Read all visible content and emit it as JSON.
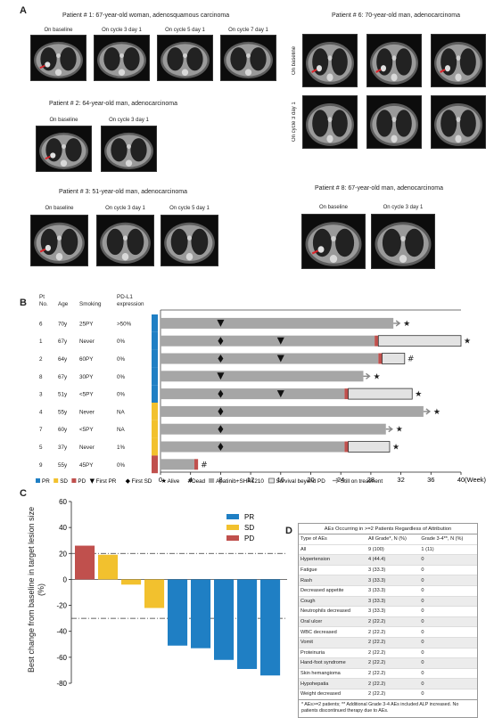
{
  "panels": {
    "a": "A",
    "b": "B",
    "c": "C",
    "d": "D"
  },
  "panel_a": {
    "patients": [
      {
        "title": "Patient # 1: 67-year-old woman, adenosquamous carcinoma",
        "labels": [
          "On baseline",
          "On cycle 3 day 1",
          "On cycle 5 day 1",
          "On cycle 7 day 1"
        ]
      },
      {
        "title": "Patient # 2: 64-year-old man, adenocarcinoma",
        "labels": [
          "On baseline",
          "On cycle 3 day 1"
        ]
      },
      {
        "title": "Patient # 3: 51-year-old man, adenocarcinoma",
        "labels": [
          "On baseline",
          "On cycle 3 day 1",
          "On cycle 5 day 1"
        ]
      },
      {
        "title": "Patient # 6: 70-year-old man, adenocarcinoma",
        "labels": [
          "On baseline",
          "On cycle 3 day 1"
        ]
      },
      {
        "title": "Patient # 8: 67-year-old man, adenocarcinoma",
        "labels": [
          "On baseline",
          "On cycle 3 day 1"
        ]
      }
    ]
  },
  "panel_b": {
    "headers": {
      "pt": "Pt",
      "no": "No.",
      "age": "Age",
      "smoking": "Smoking",
      "pdl1": "PD-L1",
      "expr": "expression"
    },
    "axis_unit": "(Week)",
    "legend": {
      "pr": "PR",
      "sd": "SD",
      "pd": "PD",
      "first_pr": "First PR",
      "first_sd": "First SD",
      "alive": "Alive",
      "dead": "Dead",
      "treat": "Apatinib+SHR1210",
      "survival": "Survival beyond PD",
      "still": "Still on treatment"
    }
  },
  "panel_d": {
    "title": "AEs Occurring in >=2 Patients Regardless of Attribution",
    "columns": [
      "Type of AEs",
      "All Grade*, N (%)",
      "Grade 3-4**, N (%)"
    ],
    "rows": [
      [
        "All",
        "9 (100)",
        "1 (11)"
      ],
      [
        "Hypertension",
        "4 (44.4)",
        "0"
      ],
      [
        "Fatigue",
        "3 (33.3)",
        "0"
      ],
      [
        "Rash",
        "3 (33.3)",
        "0"
      ],
      [
        "Decreased appetite",
        "3 (33.3)",
        "0"
      ],
      [
        "Cough",
        "3 (33.3)",
        "0"
      ],
      [
        "Neutrophils decreased",
        "3 (33.3)",
        "0"
      ],
      [
        "Oral ulcer",
        "2 (22.2)",
        "0"
      ],
      [
        "WBC decreased",
        "2 (22.2)",
        "0"
      ],
      [
        "Vomit",
        "2 (22.2)",
        "0"
      ],
      [
        "Proteinuria",
        "2 (22.2)",
        "0"
      ],
      [
        "Hand-foot syndrome",
        "2 (22.2)",
        "0"
      ],
      [
        "Skin hemangioma",
        "2 (22.2)",
        "0"
      ],
      [
        "Hypohepatia",
        "2 (22.2)",
        "0"
      ],
      [
        "Weight decreased",
        "2 (22.2)",
        "0"
      ]
    ],
    "footnote": "* AEs>=2 patients; ** Additional Grade 3-4 AEs included ALP increased. No patients discontinued therapy due to AEs."
  },
  "colors": {
    "pr": "#1f7fc4",
    "sd": "#f2c12e",
    "pd": "#c0504d",
    "treat": "#a6a6a6",
    "survival": "#e3e3e3"
  },
  "chart_data": [
    {
      "type": "bar",
      "orientation": "horizontal",
      "title": "",
      "xlabel": "",
      "x_unit": "(Week)",
      "xlim": [
        0,
        40
      ],
      "xticks": [
        0,
        4,
        8,
        12,
        16,
        20,
        24,
        28,
        32,
        36,
        40
      ],
      "patients": [
        {
          "pt": "6",
          "age": "70y",
          "smoking": "25PY",
          "pdl1": ">50%",
          "response": "PR",
          "treat_end": 31,
          "pd_week": null,
          "survival_end": null,
          "still_on": true,
          "status": "alive",
          "first_pr": 8,
          "first_sd": null
        },
        {
          "pt": "1",
          "age": "67y",
          "smoking": "Never",
          "pdl1": "0%",
          "response": "PR",
          "treat_end": 29,
          "pd_week": 28.5,
          "survival_end": 40,
          "still_on": false,
          "status": "alive",
          "first_pr": 16,
          "first_sd": 8
        },
        {
          "pt": "2",
          "age": "64y",
          "smoking": "60PY",
          "pdl1": "0%",
          "response": "PR",
          "treat_end": 29.5,
          "pd_week": 29,
          "survival_end": 32.5,
          "still_on": false,
          "status": "dead",
          "first_pr": 16,
          "first_sd": 8
        },
        {
          "pt": "8",
          "age": "67y",
          "smoking": "30PY",
          "pdl1": "0%",
          "response": "PR",
          "treat_end": 27,
          "pd_week": null,
          "survival_end": null,
          "still_on": true,
          "status": "alive",
          "first_pr": 8,
          "first_sd": null
        },
        {
          "pt": "3",
          "age": "51y",
          "smoking": "<5PY",
          "pdl1": "0%",
          "response": "PR",
          "treat_end": 25,
          "pd_week": 24.5,
          "survival_end": 33.5,
          "still_on": false,
          "status": "alive",
          "first_pr": 16,
          "first_sd": 8
        },
        {
          "pt": "4",
          "age": "55y",
          "smoking": "Never",
          "pdl1": "NA",
          "response": "SD",
          "treat_end": 35,
          "pd_week": null,
          "survival_end": null,
          "still_on": true,
          "status": "alive",
          "first_pr": null,
          "first_sd": 8
        },
        {
          "pt": "7",
          "age": "60y",
          "smoking": "<5PY",
          "pdl1": "NA",
          "response": "SD",
          "treat_end": 30,
          "pd_week": null,
          "survival_end": null,
          "still_on": true,
          "status": "alive",
          "first_pr": null,
          "first_sd": 8
        },
        {
          "pt": "5",
          "age": "37y",
          "smoking": "Never",
          "pdl1": "1%",
          "response": "SD",
          "treat_end": 25,
          "pd_week": 24.5,
          "survival_end": 30.5,
          "still_on": false,
          "status": "alive",
          "first_pr": null,
          "first_sd": 8
        },
        {
          "pt": "9",
          "age": "55y",
          "smoking": "45PY",
          "pdl1": "0%",
          "response": "PD",
          "treat_end": 5,
          "pd_week": 4.5,
          "survival_end": null,
          "still_on": false,
          "status": "dead",
          "first_pr": null,
          "first_sd": null
        }
      ]
    },
    {
      "type": "bar",
      "title": "",
      "ylabel": "Best change from baseline in target lesion size (%)",
      "ylim": [
        -80,
        60
      ],
      "yticks": [
        60,
        40,
        20,
        0,
        -20,
        -40,
        -60,
        -80
      ],
      "reference_lines": [
        20,
        -30
      ],
      "legend": [
        "PR",
        "SD",
        "PD"
      ],
      "legend_position": "top-right",
      "bars": [
        {
          "value": 26,
          "group": "PD"
        },
        {
          "value": 19,
          "group": "SD"
        },
        {
          "value": -4,
          "group": "SD"
        },
        {
          "value": -22,
          "group": "SD"
        },
        {
          "value": -51,
          "group": "PR"
        },
        {
          "value": -53,
          "group": "PR"
        },
        {
          "value": -62,
          "group": "PR"
        },
        {
          "value": -69,
          "group": "PR"
        },
        {
          "value": -74,
          "group": "PR"
        }
      ]
    }
  ]
}
